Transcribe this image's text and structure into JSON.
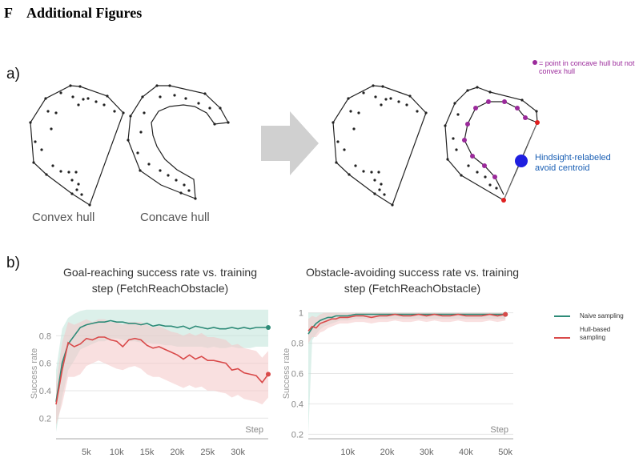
{
  "section": {
    "letter": "F",
    "title": "Additional Figures"
  },
  "panel_a": {
    "label": "a)",
    "captions": {
      "convex": "Convex hull",
      "concave": "Concave hull"
    },
    "legend_note": "= point in concave hull but not convex hull",
    "centroid_label": "Hindsight-relabeled avoid centroid",
    "colors": {
      "hull_point": "#9b2a9b",
      "centroid": "#1f1fe0",
      "endpoint": "#e02020",
      "arrow": "#d0d0d0"
    }
  },
  "panel_b": {
    "label": "b)",
    "legend": {
      "naive": "Naive sampling",
      "hull": "Hull-based sampling"
    },
    "colors": {
      "naive": "#2e8b78",
      "hull": "#d94a4a",
      "naive_band": "#bfe3d8",
      "hull_band": "#f4c6c6"
    }
  },
  "chart_data": [
    {
      "type": "line",
      "title": "Goal-reaching success rate vs. training step (FetchReachObstacle)",
      "xlabel": "Step",
      "ylabel": "Success rate",
      "xlim": [
        0,
        35000
      ],
      "ylim": [
        0.05,
        1.0
      ],
      "yticks": [
        0.2,
        0.4,
        0.6,
        0.8
      ],
      "ytick_labels": [
        "0.2",
        "0.4",
        "0.6",
        "0.8"
      ],
      "xticks": [
        5000,
        10000,
        15000,
        20000,
        25000,
        30000
      ],
      "xtick_labels": [
        "5k",
        "10k",
        "15k",
        "20k",
        "25k",
        "30k"
      ],
      "grid": true,
      "series": [
        {
          "name": "Naive sampling",
          "x": [
            0,
            1000,
            2000,
            3000,
            4000,
            5000,
            6000,
            7000,
            8000,
            9000,
            10000,
            11000,
            12000,
            13000,
            14000,
            15000,
            16000,
            17000,
            18000,
            19000,
            20000,
            21000,
            22000,
            23000,
            24000,
            25000,
            26000,
            27000,
            28000,
            29000,
            30000,
            31000,
            32000,
            33000,
            34000,
            35000
          ],
          "y": [
            0.32,
            0.6,
            0.74,
            0.8,
            0.86,
            0.88,
            0.89,
            0.9,
            0.9,
            0.91,
            0.9,
            0.9,
            0.89,
            0.89,
            0.88,
            0.89,
            0.87,
            0.88,
            0.87,
            0.87,
            0.86,
            0.87,
            0.85,
            0.87,
            0.86,
            0.85,
            0.86,
            0.85,
            0.85,
            0.86,
            0.85,
            0.86,
            0.85,
            0.86,
            0.86,
            0.86
          ],
          "y_low": [
            0.1,
            0.35,
            0.55,
            0.62,
            0.7,
            0.72,
            0.74,
            0.76,
            0.76,
            0.78,
            0.78,
            0.77,
            0.76,
            0.76,
            0.75,
            0.75,
            0.74,
            0.74,
            0.73,
            0.73,
            0.72,
            0.72,
            0.72,
            0.72,
            0.72,
            0.71,
            0.72,
            0.71,
            0.71,
            0.72,
            0.71,
            0.71,
            0.71,
            0.72,
            0.72,
            0.72
          ],
          "y_high": [
            0.55,
            0.85,
            0.93,
            0.96,
            0.98,
            0.99,
            0.99,
            0.99,
            0.99,
            0.99,
            0.99,
            0.99,
            0.99,
            0.99,
            0.99,
            0.99,
            0.99,
            0.99,
            0.99,
            0.99,
            0.99,
            0.99,
            0.99,
            0.99,
            0.99,
            0.99,
            0.99,
            0.99,
            0.99,
            0.99,
            0.99,
            0.99,
            0.99,
            0.99,
            0.99,
            0.99
          ]
        },
        {
          "name": "Hull-based sampling",
          "x": [
            0,
            1000,
            2000,
            3000,
            4000,
            5000,
            6000,
            7000,
            8000,
            9000,
            10000,
            11000,
            12000,
            13000,
            14000,
            15000,
            16000,
            17000,
            18000,
            19000,
            20000,
            21000,
            22000,
            23000,
            24000,
            25000,
            26000,
            27000,
            28000,
            29000,
            30000,
            31000,
            32000,
            33000,
            34000,
            35000
          ],
          "y": [
            0.3,
            0.55,
            0.75,
            0.72,
            0.74,
            0.78,
            0.77,
            0.79,
            0.79,
            0.77,
            0.76,
            0.72,
            0.77,
            0.78,
            0.77,
            0.73,
            0.71,
            0.72,
            0.7,
            0.68,
            0.66,
            0.63,
            0.66,
            0.63,
            0.65,
            0.62,
            0.62,
            0.61,
            0.6,
            0.55,
            0.56,
            0.53,
            0.52,
            0.51,
            0.46,
            0.52
          ],
          "y_low": [
            0.15,
            0.3,
            0.5,
            0.5,
            0.52,
            0.58,
            0.6,
            0.62,
            0.6,
            0.58,
            0.56,
            0.55,
            0.57,
            0.58,
            0.56,
            0.52,
            0.5,
            0.5,
            0.48,
            0.46,
            0.44,
            0.42,
            0.44,
            0.42,
            0.43,
            0.4,
            0.4,
            0.39,
            0.38,
            0.35,
            0.37,
            0.34,
            0.33,
            0.32,
            0.3,
            0.35
          ],
          "y_high": [
            0.45,
            0.75,
            0.9,
            0.88,
            0.9,
            0.92,
            0.9,
            0.92,
            0.92,
            0.9,
            0.9,
            0.88,
            0.9,
            0.9,
            0.9,
            0.88,
            0.86,
            0.87,
            0.85,
            0.83,
            0.82,
            0.8,
            0.82,
            0.8,
            0.82,
            0.79,
            0.79,
            0.78,
            0.77,
            0.73,
            0.74,
            0.71,
            0.7,
            0.69,
            0.64,
            0.69
          ]
        }
      ]
    },
    {
      "type": "line",
      "title": "Obstacle-avoiding success rate vs. training step (FetchReachObstacle)",
      "xlabel": "Step",
      "ylabel": "Success rate",
      "xlim": [
        0,
        52000
      ],
      "ylim": [
        0.17,
        1.03
      ],
      "yticks": [
        0.2,
        0.4,
        0.6,
        0.8,
        1.0
      ],
      "ytick_labels": [
        "0.2",
        "0.4",
        "0.6",
        "0.8",
        "1"
      ],
      "xticks": [
        10000,
        20000,
        30000,
        40000,
        50000
      ],
      "xtick_labels": [
        "10k",
        "20k",
        "30k",
        "40k",
        "50k"
      ],
      "grid": true,
      "series": [
        {
          "name": "Naive sampling",
          "x": [
            0,
            1000,
            2000,
            3000,
            4000,
            5000,
            6000,
            7000,
            8000,
            10000,
            12000,
            14000,
            16000,
            18000,
            20000,
            22000,
            24000,
            26000,
            28000,
            30000,
            32000,
            34000,
            36000,
            38000,
            40000,
            42000,
            44000,
            46000,
            48000,
            50000
          ],
          "y": [
            0.86,
            0.9,
            0.93,
            0.95,
            0.96,
            0.97,
            0.97,
            0.98,
            0.98,
            0.98,
            0.99,
            0.99,
            0.99,
            0.99,
            0.99,
            0.99,
            0.99,
            0.99,
            0.99,
            0.99,
            0.99,
            0.99,
            0.99,
            0.99,
            0.99,
            0.99,
            0.99,
            0.99,
            0.99,
            0.99
          ],
          "y_low": [
            0.2,
            0.82,
            0.86,
            0.89,
            0.91,
            0.92,
            0.93,
            0.94,
            0.95,
            0.95,
            0.96,
            0.96,
            0.96,
            0.96,
            0.96,
            0.96,
            0.96,
            0.96,
            0.96,
            0.96,
            0.96,
            0.96,
            0.96,
            0.96,
            0.96,
            0.96,
            0.96,
            0.96,
            0.96,
            0.96
          ],
          "y_high": [
            1,
            1,
            1,
            1,
            1,
            1,
            1,
            1,
            1,
            1,
            1,
            1,
            1,
            1,
            1,
            1,
            1,
            1,
            1,
            1,
            1,
            1,
            1,
            1,
            1,
            1,
            1,
            1,
            1,
            1
          ]
        },
        {
          "name": "Hull-based sampling",
          "x": [
            0,
            1000,
            2000,
            3000,
            4000,
            5000,
            6000,
            7000,
            8000,
            10000,
            12000,
            14000,
            16000,
            18000,
            20000,
            22000,
            24000,
            26000,
            28000,
            30000,
            32000,
            34000,
            36000,
            38000,
            40000,
            42000,
            44000,
            46000,
            48000,
            50000
          ],
          "y": [
            0.88,
            0.91,
            0.9,
            0.93,
            0.94,
            0.95,
            0.96,
            0.96,
            0.97,
            0.97,
            0.98,
            0.98,
            0.97,
            0.98,
            0.98,
            0.99,
            0.98,
            0.98,
            0.99,
            0.98,
            0.99,
            0.98,
            0.98,
            0.99,
            0.98,
            0.98,
            0.98,
            0.99,
            0.98,
            0.99
          ],
          "y_low": [
            0.8,
            0.84,
            0.84,
            0.87,
            0.88,
            0.9,
            0.91,
            0.92,
            0.93,
            0.93,
            0.94,
            0.94,
            0.93,
            0.94,
            0.94,
            0.95,
            0.94,
            0.94,
            0.95,
            0.94,
            0.95,
            0.94,
            0.94,
            0.95,
            0.94,
            0.94,
            0.94,
            0.95,
            0.94,
            0.95
          ],
          "y_high": [
            0.96,
            0.98,
            0.97,
            0.99,
            1,
            1,
            1,
            1,
            1,
            1,
            1,
            1,
            1,
            1,
            1,
            1,
            1,
            1,
            1,
            1,
            1,
            1,
            1,
            1,
            1,
            1,
            1,
            1,
            1,
            1
          ]
        }
      ]
    }
  ]
}
